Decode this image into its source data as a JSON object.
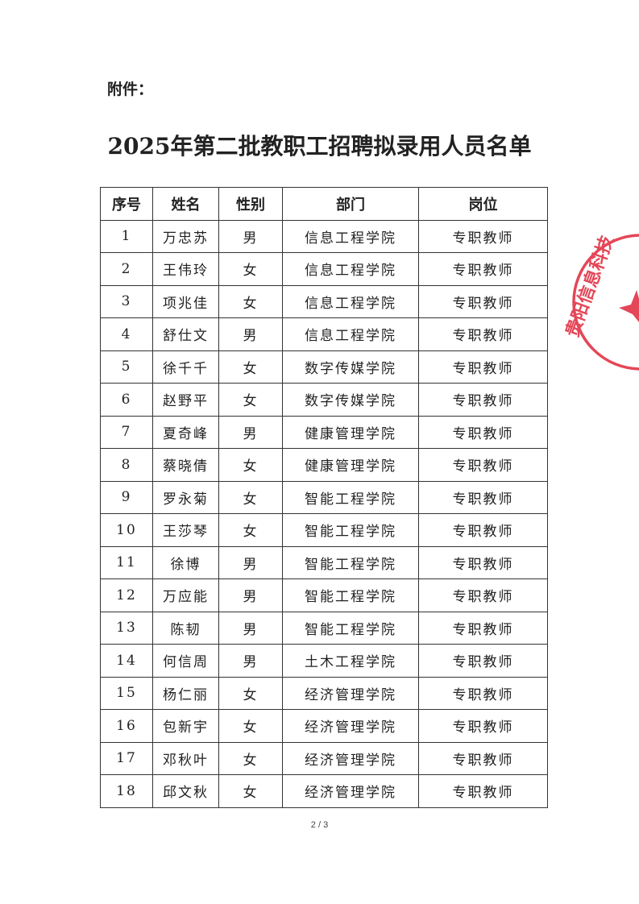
{
  "attachment_label": "附件：",
  "title": "2025年第二批教职工招聘拟录用人员名单",
  "table": {
    "headers": [
      "序号",
      "姓名",
      "性别",
      "部门",
      "岗位"
    ],
    "rows": [
      [
        "1",
        "万忠苏",
        "男",
        "信息工程学院",
        "专职教师"
      ],
      [
        "2",
        "王伟玲",
        "女",
        "信息工程学院",
        "专职教师"
      ],
      [
        "3",
        "项兆佳",
        "女",
        "信息工程学院",
        "专职教师"
      ],
      [
        "4",
        "舒仕文",
        "男",
        "信息工程学院",
        "专职教师"
      ],
      [
        "5",
        "徐千千",
        "女",
        "数字传媒学院",
        "专职教师"
      ],
      [
        "6",
        "赵野平",
        "女",
        "数字传媒学院",
        "专职教师"
      ],
      [
        "7",
        "夏奇峰",
        "男",
        "健康管理学院",
        "专职教师"
      ],
      [
        "8",
        "蔡晓倩",
        "女",
        "健康管理学院",
        "专职教师"
      ],
      [
        "9",
        "罗永菊",
        "女",
        "智能工程学院",
        "专职教师"
      ],
      [
        "10",
        "王莎琴",
        "女",
        "智能工程学院",
        "专职教师"
      ],
      [
        "11",
        "徐博",
        "男",
        "智能工程学院",
        "专职教师"
      ],
      [
        "12",
        "万应能",
        "男",
        "智能工程学院",
        "专职教师"
      ],
      [
        "13",
        "陈韧",
        "男",
        "智能工程学院",
        "专职教师"
      ],
      [
        "14",
        "何信周",
        "男",
        "土木工程学院",
        "专职教师"
      ],
      [
        "15",
        "杨仁丽",
        "女",
        "经济管理学院",
        "专职教师"
      ],
      [
        "16",
        "包新宇",
        "女",
        "经济管理学院",
        "专职教师"
      ],
      [
        "17",
        "邓秋叶",
        "女",
        "经济管理学院",
        "专职教师"
      ],
      [
        "18",
        "邱文秋",
        "女",
        "经济管理学院",
        "专职教师"
      ]
    ]
  },
  "page_number": "2 / 3",
  "stamp": {
    "text": "贵阳信息科技",
    "color": "#e0283c"
  }
}
